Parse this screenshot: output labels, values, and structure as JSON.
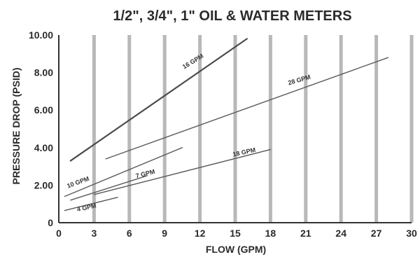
{
  "chart_data": {
    "type": "line",
    "title": "1/2\", 3/4\", 1\" OIL & WATER METERS",
    "xlabel": "FLOW (GPM)",
    "ylabel": "PRESSURE DROP (PSID)",
    "xlim": [
      0,
      30
    ],
    "ylim": [
      0,
      10
    ],
    "x_ticks": [
      0,
      3,
      6,
      9,
      12,
      15,
      18,
      21,
      24,
      27,
      30
    ],
    "x_tick_labels": [
      "0",
      "3",
      "6",
      "9",
      "12",
      "15",
      "18",
      "21",
      "24",
      "27",
      "30"
    ],
    "y_ticks": [
      0,
      2,
      4,
      6,
      8,
      10
    ],
    "y_tick_labels": [
      "0",
      "2.00",
      "4.00",
      "6.00",
      "8.00",
      "10.00"
    ],
    "grid": "vertical",
    "series": [
      {
        "name": "16 GPM",
        "x": [
          1,
          16
        ],
        "y": [
          3.3,
          9.8
        ],
        "color": "#4a4a4a",
        "width": 2.2,
        "label_at": [
          11.5,
          8.5
        ],
        "label_angle": -31
      },
      {
        "name": "28 GPM",
        "x": [
          4,
          28
        ],
        "y": [
          3.4,
          8.8
        ],
        "color": "#5a5a5a",
        "width": 1.4,
        "label_at": [
          20.5,
          7.5
        ],
        "label_angle": -16
      },
      {
        "name": "18 GPM",
        "x": [
          3,
          18
        ],
        "y": [
          1.5,
          3.9
        ],
        "color": "#5a5a5a",
        "width": 1.4,
        "label_at": [
          15.8,
          3.65
        ],
        "label_angle": -12
      },
      {
        "name": "10 GPM",
        "x": [
          0.5,
          10.5
        ],
        "y": [
          1.4,
          4.0
        ],
        "color": "#5a5a5a",
        "width": 1.4,
        "label_at": [
          1.7,
          2.05
        ],
        "label_angle": -20
      },
      {
        "name": "7 GPM",
        "x": [
          1,
          7.5
        ],
        "y": [
          1.2,
          2.5
        ],
        "color": "#5a5a5a",
        "width": 1.4,
        "label_at": [
          7.4,
          2.5
        ],
        "label_angle": -14
      },
      {
        "name": "4 GPM",
        "x": [
          0.5,
          5
        ],
        "y": [
          0.65,
          1.35
        ],
        "color": "#5a5a5a",
        "width": 1.4,
        "label_at": [
          2.4,
          0.7
        ],
        "label_angle": -12
      }
    ]
  }
}
